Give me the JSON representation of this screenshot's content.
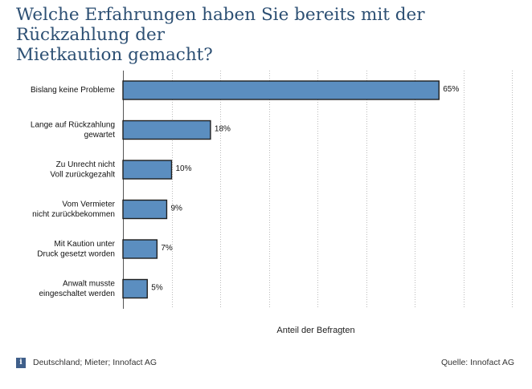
{
  "title_lines": [
    "Welche Erfahrungen haben Sie bereits mit der Rückzahlung der",
    "Mietkaution gemacht?"
  ],
  "chart_data": {
    "type": "bar",
    "orientation": "horizontal",
    "categories": [
      [
        "Bislang keine Probleme"
      ],
      [
        "Lange auf Rückzahlung",
        "gewartet"
      ],
      [
        "Zu Unrecht nicht",
        "Voll zurückgezahlt"
      ],
      [
        "Vom Vermieter",
        "nicht zurückbekommen"
      ],
      [
        "Mit Kaution unter",
        "Druck gesetzt worden"
      ],
      [
        "Anwalt musste",
        "eingeschaltet werden"
      ]
    ],
    "values": [
      65,
      18,
      10,
      9,
      7,
      5
    ],
    "value_labels": [
      "65%",
      "18%",
      "10%",
      "9%",
      "7%",
      "5%"
    ],
    "xlabel": "Anteil der Befragten",
    "xlim": [
      0,
      80
    ],
    "grid": "vertical-dotted",
    "bar_color": "#5b8ec0"
  },
  "footer": {
    "info_icon": "i",
    "note": "Deutschland; Mieter; Innofact AG",
    "source": "Quelle: Innofact AG"
  }
}
